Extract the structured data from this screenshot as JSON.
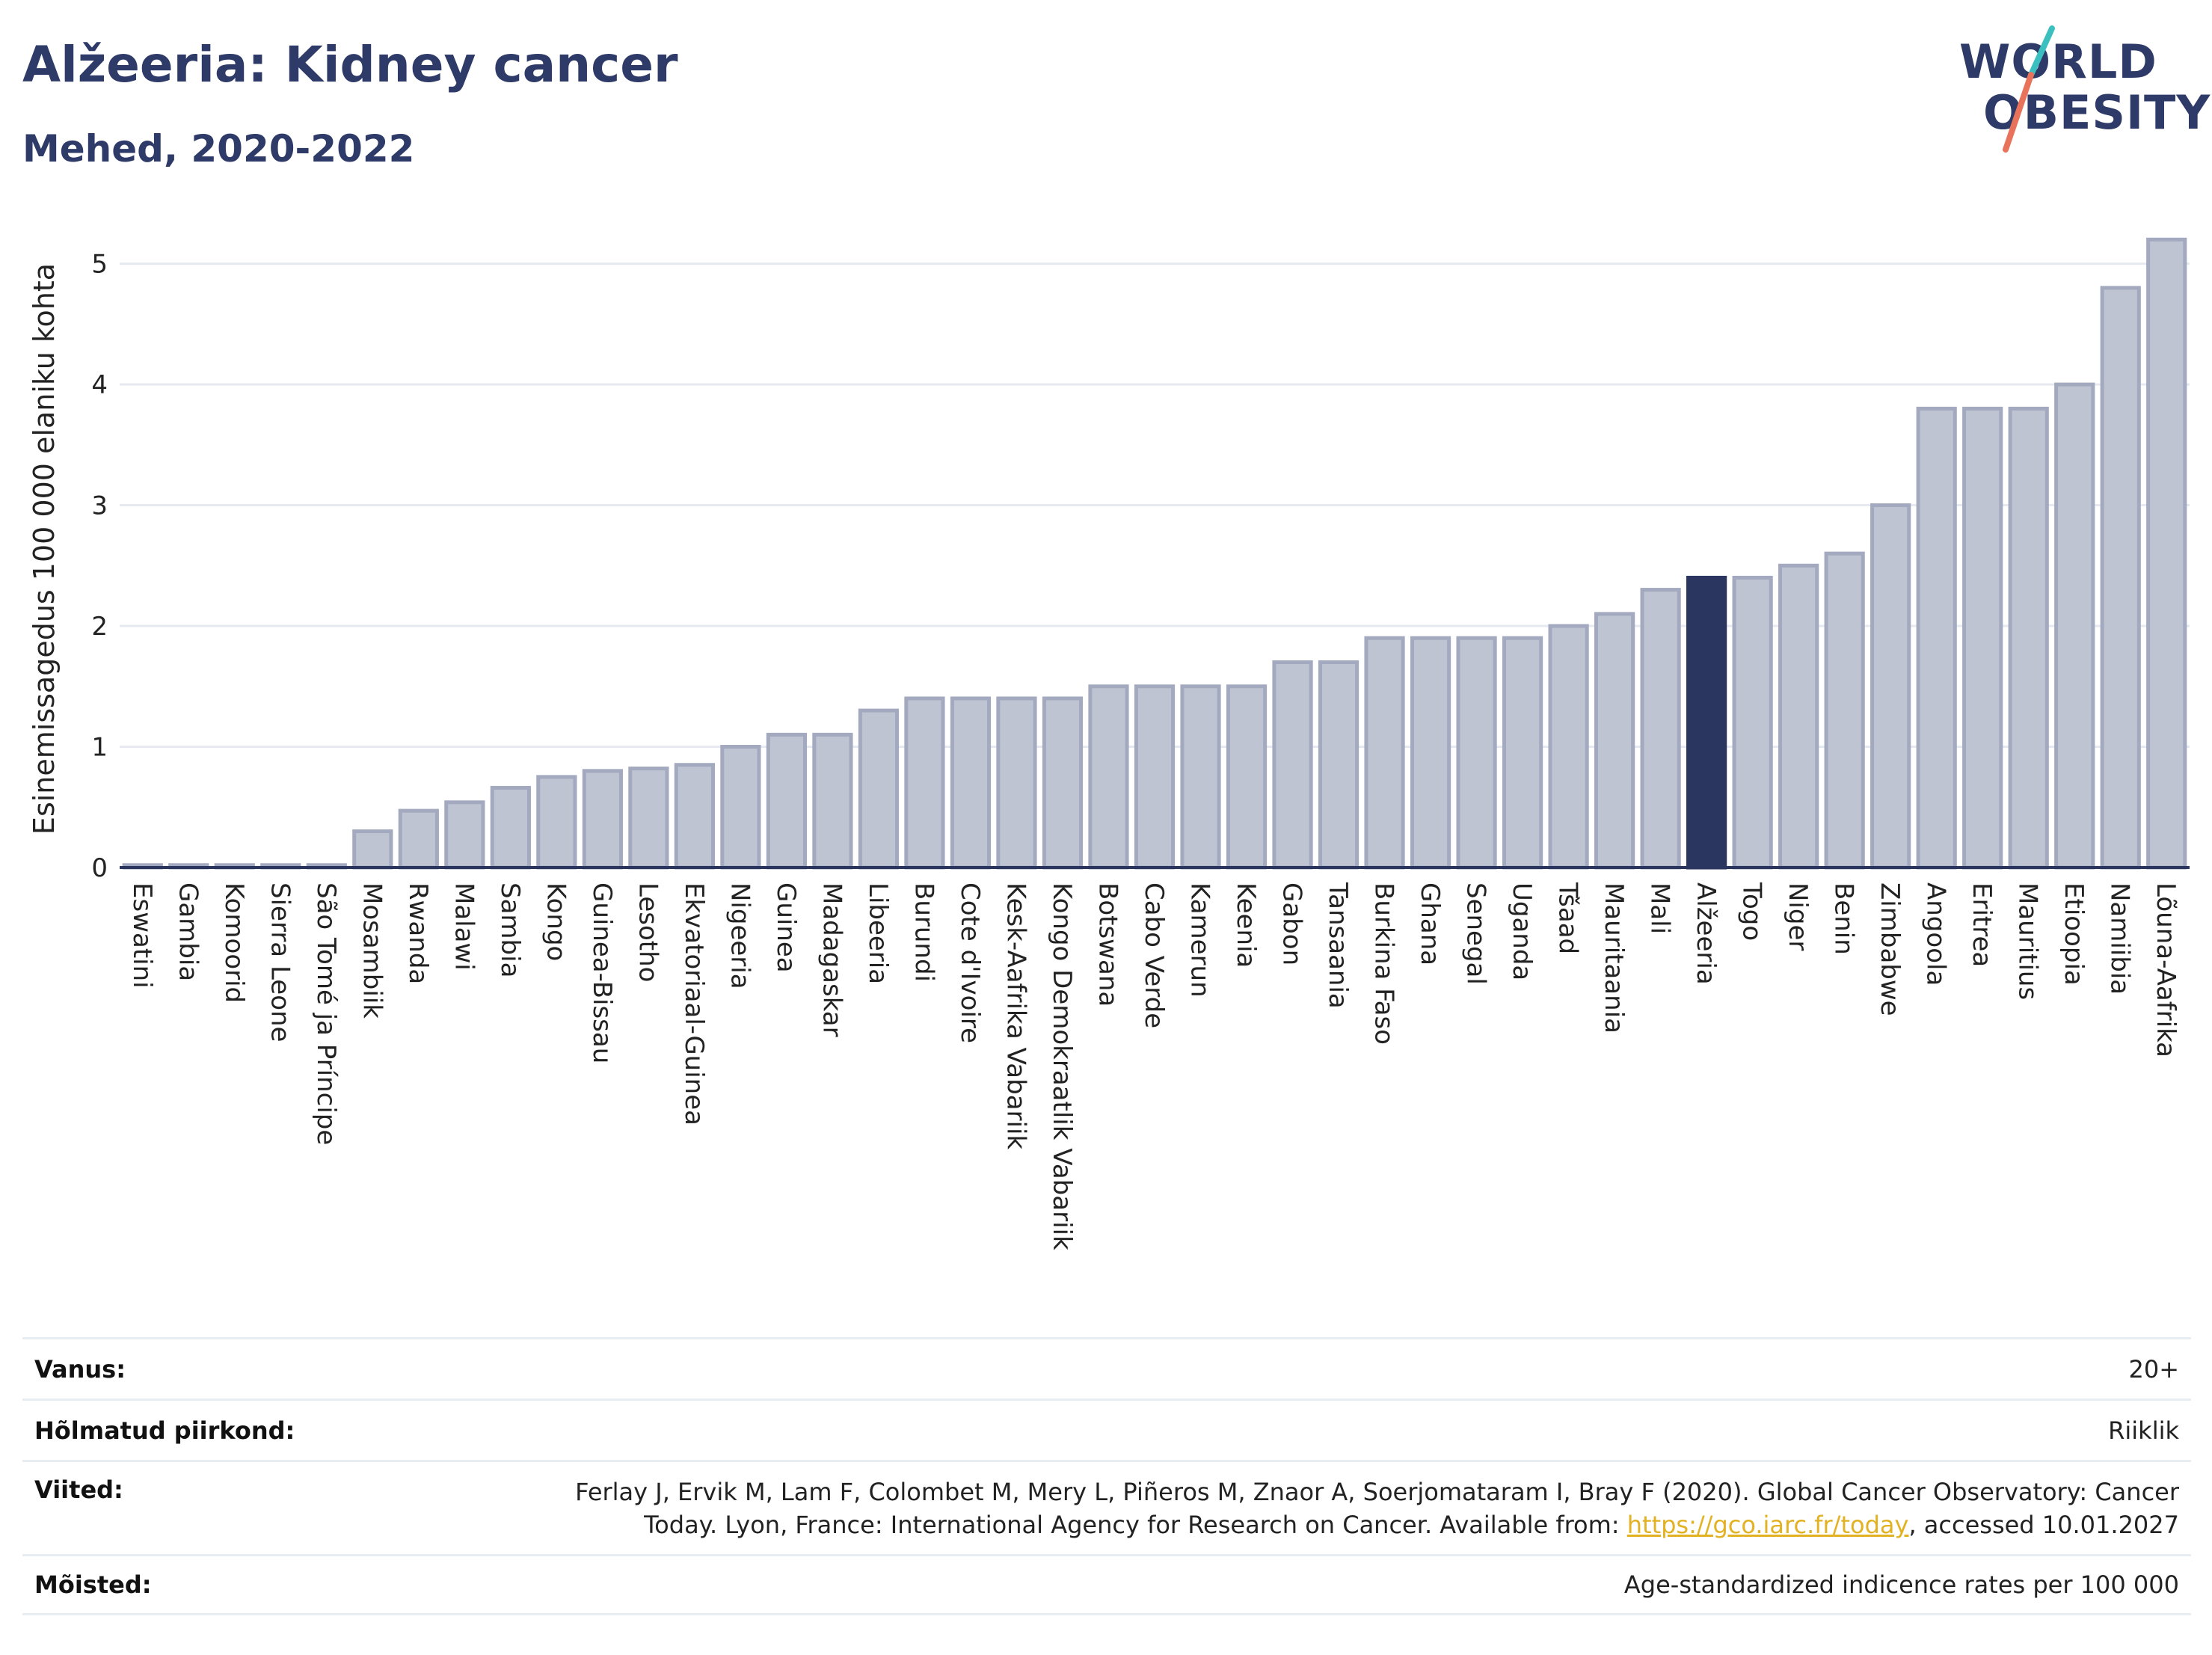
{
  "header": {
    "title": "Alžeeria: Kidney cancer",
    "subtitle": "Mehed, 2020-2022"
  },
  "logo": {
    "line1": "WORLD",
    "line2": "OBESITY",
    "accent_colors": [
      "#3bbfbf",
      "#e8735a"
    ]
  },
  "chart_data": {
    "type": "bar",
    "ylabel": "Esinemissagedus 100 000 elaniku kohta",
    "xlabel": "",
    "ylim": [
      0,
      5.4
    ],
    "yticks": [
      0,
      1,
      2,
      3,
      4,
      5
    ],
    "grid": true,
    "highlight": "Alžeeria",
    "colors": {
      "default": "#bfc4d2",
      "default_edge": "#a3a9bf",
      "highlight": "#2b3660",
      "axis": "#2b3660"
    },
    "categories": [
      "Eswatini",
      "Gambia",
      "Komoorid",
      "Sierra Leone",
      "São Tomé ja Príncipe",
      "Mosambiik",
      "Rwanda",
      "Malawi",
      "Sambia",
      "Kongo",
      "Guinea-Bissau",
      "Lesotho",
      "Ekvatoriaal-Guinea",
      "Nigeeria",
      "Guinea",
      "Madagaskar",
      "Libeeria",
      "Burundi",
      "Cote d'Ivoire",
      "Kesk-Aafrika Vabariik",
      "Kongo Demokraatlik Vabariik",
      "Botswana",
      "Cabo Verde",
      "Kamerun",
      "Keenia",
      "Gabon",
      "Tansaania",
      "Burkina Faso",
      "Ghana",
      "Senegal",
      "Uganda",
      "Tšaad",
      "Mauritaania",
      "Mali",
      "Alžeeria",
      "Togo",
      "Niger",
      "Benin",
      "Zimbabwe",
      "Angoola",
      "Eritrea",
      "Mauritius",
      "Etioopia",
      "Namiibia",
      "Lõuna-Aafrika"
    ],
    "values": [
      0.02,
      0.02,
      0.02,
      0.02,
      0.02,
      0.3,
      0.47,
      0.54,
      0.66,
      0.75,
      0.8,
      0.82,
      0.85,
      1.0,
      1.1,
      1.1,
      1.3,
      1.4,
      1.4,
      1.4,
      1.4,
      1.5,
      1.5,
      1.5,
      1.5,
      1.7,
      1.7,
      1.9,
      1.9,
      1.9,
      1.9,
      2.0,
      2.1,
      2.3,
      2.4,
      2.4,
      2.5,
      2.6,
      3.0,
      3.8,
      3.8,
      3.8,
      4.0,
      4.8,
      5.2
    ]
  },
  "footer": {
    "rows": [
      {
        "label": "Vanus:",
        "value": "20+"
      },
      {
        "label": "Hõlmatud piirkond:",
        "value": "Riiklik"
      },
      {
        "label": "Viited:",
        "value_line1": "Ferlay J, Ervik M, Lam F, Colombet M, Mery L, Piñeros M, Znaor A, Soerjomataram I, Bray F (2020). Global Cancer Observatory: Cancer",
        "value_line2_pre": "Today. Lyon, France: International Agency for Research on Cancer. Available from: ",
        "link": "https://gco.iarc.fr/today",
        "value_line2_post": ", accessed 10.01.2027"
      },
      {
        "label": "Mõisted:",
        "value": "Age-standardized indicence rates per 100 000"
      }
    ]
  }
}
